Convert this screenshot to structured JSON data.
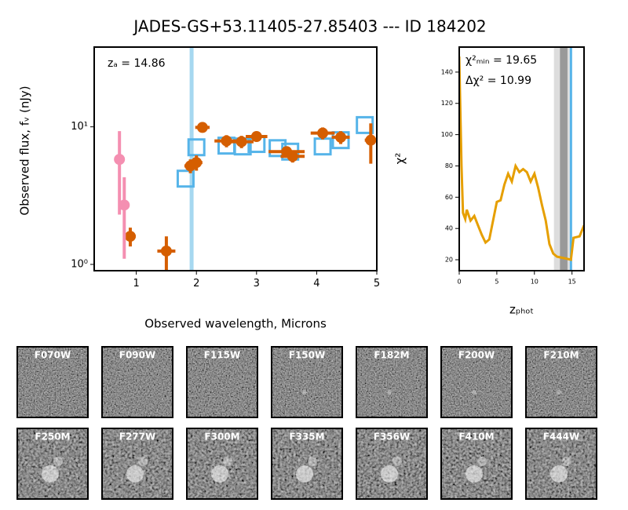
{
  "title": "JADES-GS+53.11405-27.85403 --- ID 184202",
  "chart_data": [
    {
      "type": "scatter",
      "xlabel": "Observed wavelength, Microns",
      "ylabel": "Observed flux, fᵥ (nJy)",
      "annotation": "zₐ = 14.86",
      "xlim": [
        0.3,
        5
      ],
      "ylim": [
        0.9,
        38
      ],
      "yscale": "log",
      "xticks": [
        1,
        2,
        3,
        4,
        5
      ],
      "yticks": [
        {
          "value": 1,
          "label": "10⁰"
        },
        {
          "value": 10,
          "label": "10¹"
        }
      ],
      "vline": {
        "x": 1.92,
        "color": "#a6d8f0"
      },
      "series": [
        {
          "marker": "open-square",
          "color": "#56b4e9",
          "x": [
            1.82,
            2.0,
            2.5,
            2.77,
            3.0,
            3.35,
            3.56,
            4.1,
            4.4,
            4.8
          ],
          "values": [
            4.2,
            7.1,
            7.3,
            7.2,
            7.5,
            7.0,
            6.6,
            7.2,
            8.0,
            10.3
          ]
        },
        {
          "marker": "circle",
          "color": "#d55e00",
          "x": [
            0.9,
            1.5,
            1.9,
            2.0,
            2.1,
            2.5,
            2.75,
            3.0,
            3.5,
            3.6,
            4.1,
            4.4,
            4.9
          ],
          "values": [
            1.6,
            1.25,
            5.2,
            5.5,
            9.9,
            7.9,
            7.8,
            8.5,
            6.6,
            6.1,
            9.0,
            8.4,
            8.0
          ],
          "errors": [
            0.25,
            0.35,
            0.6,
            0.7,
            0.6,
            0.8,
            0.8,
            0.7,
            0.5,
            0.6,
            0.9,
            0.9,
            2.6
          ],
          "xerrors": [
            0.09,
            0.15,
            0.1,
            0.1,
            0.12,
            0.2,
            0.2,
            0.18,
            0.3,
            0.2,
            0.2,
            0.15,
            0.1
          ]
        },
        {
          "marker": "circle",
          "color": "#f48fb1",
          "x": [
            0.72,
            0.8
          ],
          "values": [
            5.8,
            2.7
          ],
          "errors": [
            3.5,
            1.6
          ],
          "xerrors": [
            0.05,
            0.05
          ]
        }
      ]
    },
    {
      "type": "line",
      "xlabel": "zₚₕₒₜ",
      "ylabel": "χ²",
      "annotations": [
        "χ²ₘᵢₙ = 19.65",
        "Δχ² = 10.99"
      ],
      "xlim": [
        0,
        16.6
      ],
      "ylim": [
        13,
        156
      ],
      "xticks": [
        0,
        5,
        10,
        15
      ],
      "yticks": [
        20,
        40,
        60,
        80,
        100,
        120,
        140
      ],
      "vline": {
        "x": 14.86,
        "color": "#56b4e9"
      },
      "bands": [
        {
          "x": [
            12.6,
            14.7
          ],
          "color": "#dddddd"
        },
        {
          "x": [
            13.4,
            14.4
          ],
          "color": "#999999"
        }
      ],
      "x": [
        0,
        0.3,
        0.5,
        0.8,
        1,
        1.5,
        2,
        2.5,
        3,
        3.5,
        4,
        4.5,
        5,
        5.5,
        6,
        6.5,
        7,
        7.5,
        8,
        8.5,
        9,
        9.5,
        10,
        10.5,
        11,
        11.5,
        12,
        12.5,
        13,
        14,
        14.86,
        15.2,
        16,
        16.6
      ],
      "series": [
        {
          "color": "#e69f00",
          "values": [
            150,
            80,
            50,
            46,
            52,
            45,
            48,
            42,
            36,
            31,
            33,
            45,
            57,
            58,
            68,
            75,
            70,
            80,
            76,
            78,
            76,
            70,
            75,
            66,
            55,
            45,
            30,
            24,
            22,
            21,
            20,
            34,
            35,
            42
          ]
        }
      ]
    }
  ],
  "stamps": [
    "F070W",
    "F090W",
    "F115W",
    "F150W",
    "F182M",
    "F200W",
    "F210M",
    "F250M",
    "F277W",
    "F300M",
    "F335M",
    "F356W",
    "F410M",
    "F444W"
  ]
}
